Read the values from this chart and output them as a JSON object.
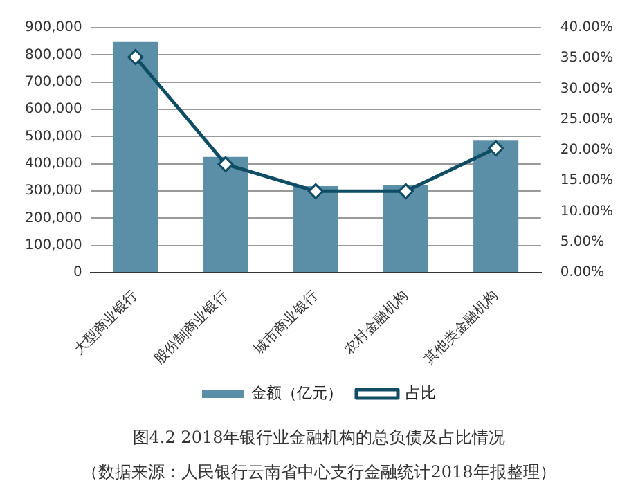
{
  "chart_data": {
    "type": "bar",
    "title": "图4.2 2018年银行业金融机构的总负债及占比情况",
    "annotations": [
      "（数据来源：人民银行云南省中心支行金融统计2018年报整理）"
    ],
    "categories": [
      "大型商业银行",
      "股份制商业银行",
      "城市商业银行",
      "农村金融机构",
      "其他类金融机构"
    ],
    "series": [
      {
        "name": "金额（亿元）",
        "color": "#5b8fa8",
        "values": [
          850000,
          425000,
          318000,
          322000,
          485000
        ]
      },
      {
        "name": "占比",
        "type": "line",
        "axis": "y2",
        "color": "#0e4d64",
        "marker": "diamond",
        "values": [
          35.2,
          17.7,
          13.3,
          13.3,
          20.3
        ]
      }
    ],
    "ylim": [
      0,
      900000
    ],
    "yticks": [
      {
        "value": 0,
        "label": "0"
      },
      {
        "value": 100000,
        "label": "100,000"
      },
      {
        "value": 200000,
        "label": "200,000"
      },
      {
        "value": 300000,
        "label": "300,000"
      },
      {
        "value": 400000,
        "label": "400,000"
      },
      {
        "value": 500000,
        "label": "500,000"
      },
      {
        "value": 600000,
        "label": "600,000"
      },
      {
        "value": 700000,
        "label": "700,000"
      },
      {
        "value": 800000,
        "label": "800,000"
      },
      {
        "value": 900000,
        "label": "900,000"
      }
    ],
    "y2lim": [
      0,
      40
    ],
    "y2ticks": [
      {
        "value": 0,
        "label": "0.00%"
      },
      {
        "value": 5,
        "label": "5.00%"
      },
      {
        "value": 10,
        "label": "10.00%"
      },
      {
        "value": 15,
        "label": "15.00%"
      },
      {
        "value": 20,
        "label": "20.00%"
      },
      {
        "value": 25,
        "label": "25.00%"
      },
      {
        "value": 30,
        "label": "30.00%"
      },
      {
        "value": 35,
        "label": "35.00%"
      },
      {
        "value": 40,
        "label": "40.00%"
      }
    ],
    "grid": "y",
    "legend": "bottom"
  }
}
